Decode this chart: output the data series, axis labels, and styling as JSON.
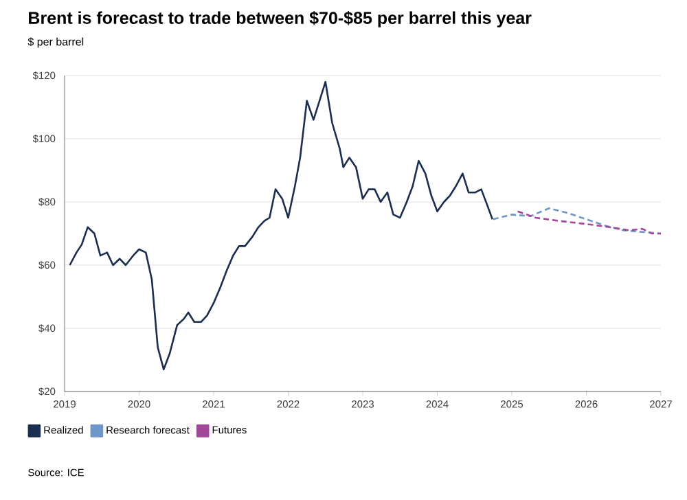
{
  "chart_data": {
    "type": "line",
    "title": "Brent is forecast to trade between $70-$85 per barrel this year",
    "subtitle": "$ per barrel",
    "annotations": [
      "Source: ICE"
    ],
    "xlim": [
      2019,
      2027
    ],
    "xticks": [
      2019,
      2020,
      2021,
      2022,
      2023,
      2024,
      2025,
      2026,
      2027
    ],
    "ylim": [
      20,
      120
    ],
    "yticks": [
      {
        "value": 20,
        "label": "$20"
      },
      {
        "value": 40,
        "label": "$40"
      },
      {
        "value": 60,
        "label": "$60"
      },
      {
        "value": 80,
        "label": "$80"
      },
      {
        "value": 100,
        "label": "$100"
      },
      {
        "value": 120,
        "label": "$120"
      }
    ],
    "grid": "y",
    "legend": "bottom",
    "marker": "none",
    "series": [
      {
        "name": "Realized",
        "color": "#1a2e52",
        "line_style": "solid",
        "x": [
          2019.07,
          2019.16,
          2019.23,
          2019.31,
          2019.4,
          2019.48,
          2019.57,
          2019.65,
          2019.74,
          2019.82,
          2019.92,
          2020.0,
          2020.09,
          2020.17,
          2020.25,
          2020.33,
          2020.41,
          2020.51,
          2020.6,
          2020.66,
          2020.74,
          2020.83,
          2020.91,
          2021.0,
          2021.09,
          2021.17,
          2021.26,
          2021.34,
          2021.42,
          2021.52,
          2021.6,
          2021.68,
          2021.75,
          2021.83,
          2021.92,
          2022.0,
          2022.09,
          2022.16,
          2022.25,
          2022.34,
          2022.42,
          2022.5,
          2022.59,
          2022.69,
          2022.74,
          2022.82,
          2022.91,
          2023.0,
          2023.08,
          2023.16,
          2023.24,
          2023.33,
          2023.41,
          2023.5,
          2023.59,
          2023.67,
          2023.75,
          2023.84,
          2023.92,
          2024.0,
          2024.09,
          2024.17,
          2024.25,
          2024.34,
          2024.42,
          2024.51,
          2024.59,
          2024.67,
          2024.74
        ],
        "values": [
          60,
          64,
          66.5,
          72,
          70,
          63,
          64,
          60,
          62,
          60,
          63,
          65,
          64,
          55.5,
          34,
          27,
          32,
          41,
          43,
          45,
          42,
          42,
          44,
          48,
          53,
          58,
          63,
          66,
          66,
          69,
          72,
          74,
          75,
          84,
          81,
          75,
          85,
          94,
          112,
          106,
          112,
          118,
          105,
          97,
          91,
          94,
          91,
          81,
          84,
          84,
          80,
          83,
          76,
          75,
          80,
          85,
          93,
          89,
          82,
          77,
          80,
          82,
          85,
          89,
          83,
          83,
          84,
          79,
          74.5
        ]
      },
      {
        "name": "Research forecast",
        "color": "#6f96c8",
        "line_style": "dashed",
        "x": [
          2024.75,
          2025.0,
          2025.25,
          2025.5,
          2025.75,
          2026.0,
          2026.25,
          2026.5,
          2026.75,
          2027.0
        ],
        "values": [
          74.5,
          76,
          75.5,
          78,
          76.5,
          74.5,
          72.5,
          71,
          70.5,
          70
        ]
      },
      {
        "name": "Futures",
        "color": "#a3479a",
        "line_style": "dashed",
        "x": [
          2025.08,
          2025.32,
          2025.63,
          2026.0,
          2026.32,
          2026.57,
          2026.75,
          2026.88,
          2027.0
        ],
        "values": [
          77,
          75,
          74,
          73,
          72,
          71,
          71.5,
          70,
          70
        ]
      }
    ]
  }
}
